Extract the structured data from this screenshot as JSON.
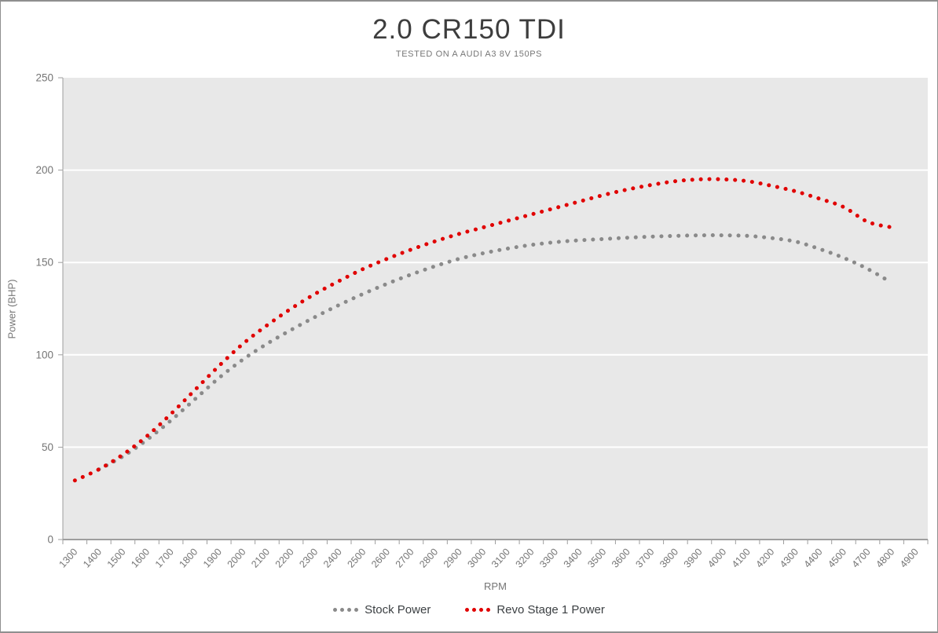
{
  "header": {
    "title": "2.0 CR150 TDI",
    "subtitle": "TESTED ON A AUDI A3 8V 150PS"
  },
  "colors": {
    "plot_background": "#e8e8e8",
    "gridline": "#ffffff",
    "axis_line": "#9e9e9e",
    "tick_label": "#757575",
    "title_text": "#3d3d3d",
    "subtitle_text": "#767676",
    "legend_text": "#3c4043",
    "frame_border": "#8f8f8f",
    "stock_series": "#8a8a8a",
    "revo_series": "#e00000"
  },
  "chart_data": {
    "type": "line",
    "line_style": "dotted",
    "title": "2.0 CR150 TDI",
    "subtitle": "TESTED ON A AUDI A3 8V 150PS",
    "xlabel": "RPM",
    "ylabel": "Power (BHP)",
    "ylim": [
      0,
      250
    ],
    "y_ticks": [
      0,
      50,
      100,
      150,
      200,
      250
    ],
    "grid": "horizontal-only",
    "legend_position": "bottom",
    "x_label_rotation_deg": -48,
    "categories": [
      1300,
      1400,
      1500,
      1600,
      1700,
      1800,
      1900,
      2000,
      2100,
      2200,
      2300,
      2400,
      2500,
      2600,
      2700,
      2800,
      2900,
      3000,
      3100,
      3200,
      3300,
      3400,
      3500,
      3600,
      3700,
      3800,
      3900,
      4000,
      4100,
      4200,
      4300,
      4400,
      4500,
      4700,
      4800,
      4900
    ],
    "series": [
      {
        "name": "Stock Power",
        "color": "#8a8a8a",
        "values": [
          null,
          38,
          45,
          54,
          64.5,
          76,
          87.5,
          97.5,
          106,
          113.5,
          120.5,
          127,
          133,
          138.5,
          143.5,
          148,
          152,
          155,
          157.5,
          159.5,
          161,
          162,
          162.7,
          163.4,
          164,
          164.4,
          164.7,
          164.7,
          164.4,
          163.2,
          161.3,
          157.3,
          152.5,
          146.5,
          139,
          null
        ]
      },
      {
        "name": "Revo Stage 1 Power",
        "color": "#e00000",
        "values": [
          32,
          38,
          46,
          56,
          68,
          81,
          94,
          106,
          116,
          125,
          133,
          140,
          146.5,
          152,
          157,
          161.5,
          165.5,
          169,
          172.5,
          176,
          179.5,
          183,
          186.5,
          189.5,
          192,
          194,
          195,
          195,
          194,
          191.5,
          188.5,
          184.5,
          180,
          172,
          169,
          null
        ]
      }
    ]
  },
  "plot_geometry_note": "plot area left 79, top 97, right 1180, bottom 685"
}
